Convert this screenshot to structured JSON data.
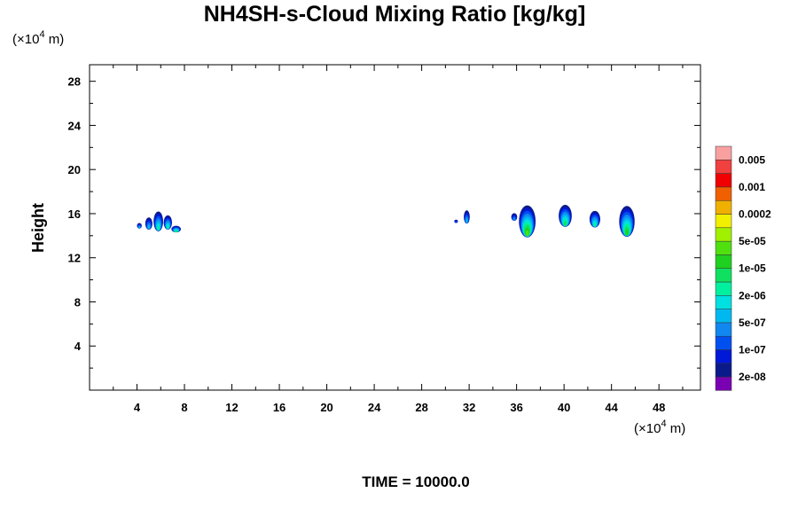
{
  "chart_data": {
    "type": "heatmap",
    "title": "NH4SH-s-Cloud Mixing Ratio [kg/kg]",
    "ylabel": "Height",
    "xlabel": "",
    "x_unit_prefix": "(×10",
    "x_unit_exp": "4",
    "x_unit_suffix": " m)",
    "y_unit_prefix": "(×10",
    "y_unit_exp": "4",
    "y_unit_suffix": " m)",
    "xlim": [
      0,
      51.5
    ],
    "ylim": [
      0,
      29.5
    ],
    "x_ticks": [
      4,
      8,
      12,
      16,
      20,
      24,
      28,
      32,
      36,
      40,
      44,
      48
    ],
    "x_tick_labels": [
      "4",
      "8",
      "12",
      "16",
      "20",
      "24",
      "28",
      "32",
      "36",
      "40",
      "44",
      "48"
    ],
    "y_ticks": [
      4,
      8,
      12,
      16,
      20,
      24,
      28
    ],
    "y_tick_labels": [
      "4",
      "8",
      "12",
      "16",
      "20",
      "24",
      "28"
    ],
    "colorbar": {
      "colors": [
        "#7a00b4",
        "#0a1a8a",
        "#0018d8",
        "#0050f0",
        "#1088f0",
        "#00b8f0",
        "#00e0e0",
        "#00f0a0",
        "#10e060",
        "#20d020",
        "#50e010",
        "#a0f000",
        "#f0f000",
        "#f0b000",
        "#f06000",
        "#f00000",
        "#f04040",
        "#f8a0a0"
      ],
      "labels": [
        "2e-08",
        "1e-07",
        "5e-07",
        "2e-06",
        "1e-05",
        "5e-05",
        "0.0002",
        "0.001",
        "0.005"
      ]
    },
    "clouds": [
      {
        "x": 4.2,
        "y": 14.9,
        "w": 0.4,
        "h": 0.5,
        "level": 5
      },
      {
        "x": 5.0,
        "y": 15.1,
        "w": 0.6,
        "h": 1.1,
        "level": 5
      },
      {
        "x": 5.8,
        "y": 15.3,
        "w": 0.8,
        "h": 1.8,
        "level": 7
      },
      {
        "x": 6.6,
        "y": 15.2,
        "w": 0.7,
        "h": 1.3,
        "level": 7
      },
      {
        "x": 7.3,
        "y": 14.6,
        "w": 0.8,
        "h": 0.6,
        "level": 8
      },
      {
        "x": 31.8,
        "y": 15.7,
        "w": 0.5,
        "h": 1.2,
        "level": 5
      },
      {
        "x": 30.9,
        "y": 15.3,
        "w": 0.3,
        "h": 0.3,
        "level": 3
      },
      {
        "x": 35.8,
        "y": 15.7,
        "w": 0.5,
        "h": 0.7,
        "level": 4
      },
      {
        "x": 36.9,
        "y": 15.3,
        "w": 1.4,
        "h": 2.9,
        "level": 10
      },
      {
        "x": 40.1,
        "y": 15.8,
        "w": 1.1,
        "h": 2.0,
        "level": 8
      },
      {
        "x": 42.6,
        "y": 15.5,
        "w": 0.9,
        "h": 1.5,
        "level": 7
      },
      {
        "x": 45.3,
        "y": 15.3,
        "w": 1.3,
        "h": 2.8,
        "level": 9
      }
    ],
    "footer": "TIME = 10000.0"
  }
}
